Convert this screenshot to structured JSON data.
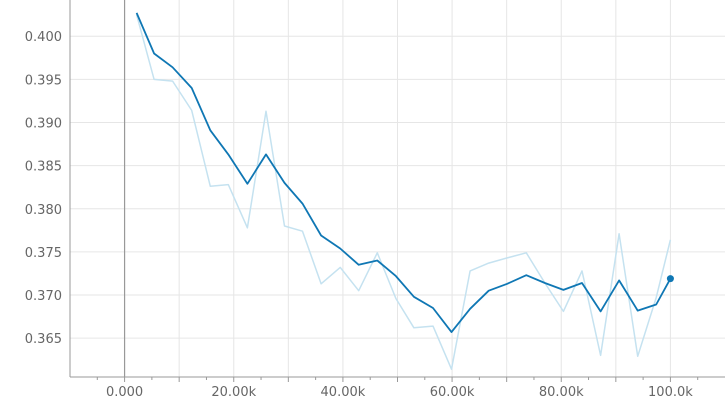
{
  "chart_data": {
    "type": "line",
    "title": "",
    "xlabel": "",
    "ylabel": "",
    "xlim": [
      -10000,
      110000
    ],
    "ylim": [
      0.3605,
      0.4042
    ],
    "x_ticks": [
      0,
      10000,
      20000,
      30000,
      40000,
      50000,
      60000,
      70000,
      80000,
      90000,
      100000
    ],
    "x_tick_labels": [
      "0.000",
      "",
      "20.00k",
      "",
      "40.00k",
      "",
      "60.00k",
      "",
      "80.00k",
      "",
      "100.0k"
    ],
    "y_ticks": [
      0.365,
      0.37,
      0.375,
      0.38,
      0.385,
      0.39,
      0.395,
      0.4
    ],
    "y_tick_labels": [
      "0.365",
      "0.370",
      "0.375",
      "0.380",
      "0.385",
      "0.390",
      "0.395",
      "0.400"
    ],
    "grid": true,
    "colors": {
      "smoothed": "#0f77b4",
      "raw": "#c5e2f0",
      "grid": "#e6e6e6",
      "axis": "#999999"
    },
    "series": [
      {
        "role": "raw",
        "x": [
          2200,
          5400,
          8800,
          12300,
          15700,
          19000,
          22500,
          25900,
          29300,
          32600,
          36000,
          39500,
          42900,
          46300,
          49700,
          53000,
          56500,
          59900,
          63300,
          66700,
          70100,
          73600,
          77000,
          80400,
          83800,
          87200,
          90600,
          94000,
          97400,
          100000
        ],
        "y": [
          0.4025,
          0.395,
          0.3948,
          0.3914,
          0.3826,
          0.3828,
          0.3778,
          0.3913,
          0.378,
          0.3774,
          0.3713,
          0.3732,
          0.3705,
          0.3749,
          0.3696,
          0.3662,
          0.3664,
          0.3614,
          0.3728,
          0.3737,
          0.3743,
          0.3749,
          0.3714,
          0.3681,
          0.3728,
          0.363,
          0.3771,
          0.3629,
          0.3697,
          0.3764
        ]
      },
      {
        "role": "smoothed",
        "x": [
          2200,
          5400,
          8800,
          12300,
          15700,
          19000,
          22500,
          25900,
          29300,
          32600,
          36000,
          39500,
          42900,
          46300,
          49700,
          53000,
          56500,
          59900,
          63300,
          66700,
          70100,
          73600,
          77000,
          80400,
          83800,
          87200,
          90600,
          94000,
          97400,
          100000
        ],
        "y": [
          0.4027,
          0.398,
          0.3964,
          0.394,
          0.3891,
          0.3863,
          0.3829,
          0.3863,
          0.383,
          0.3806,
          0.3769,
          0.3754,
          0.3735,
          0.374,
          0.3722,
          0.3698,
          0.3685,
          0.3657,
          0.3684,
          0.3705,
          0.3713,
          0.3723,
          0.3714,
          0.3706,
          0.3714,
          0.3681,
          0.3717,
          0.3682,
          0.3689,
          0.3719
        ]
      }
    ]
  }
}
